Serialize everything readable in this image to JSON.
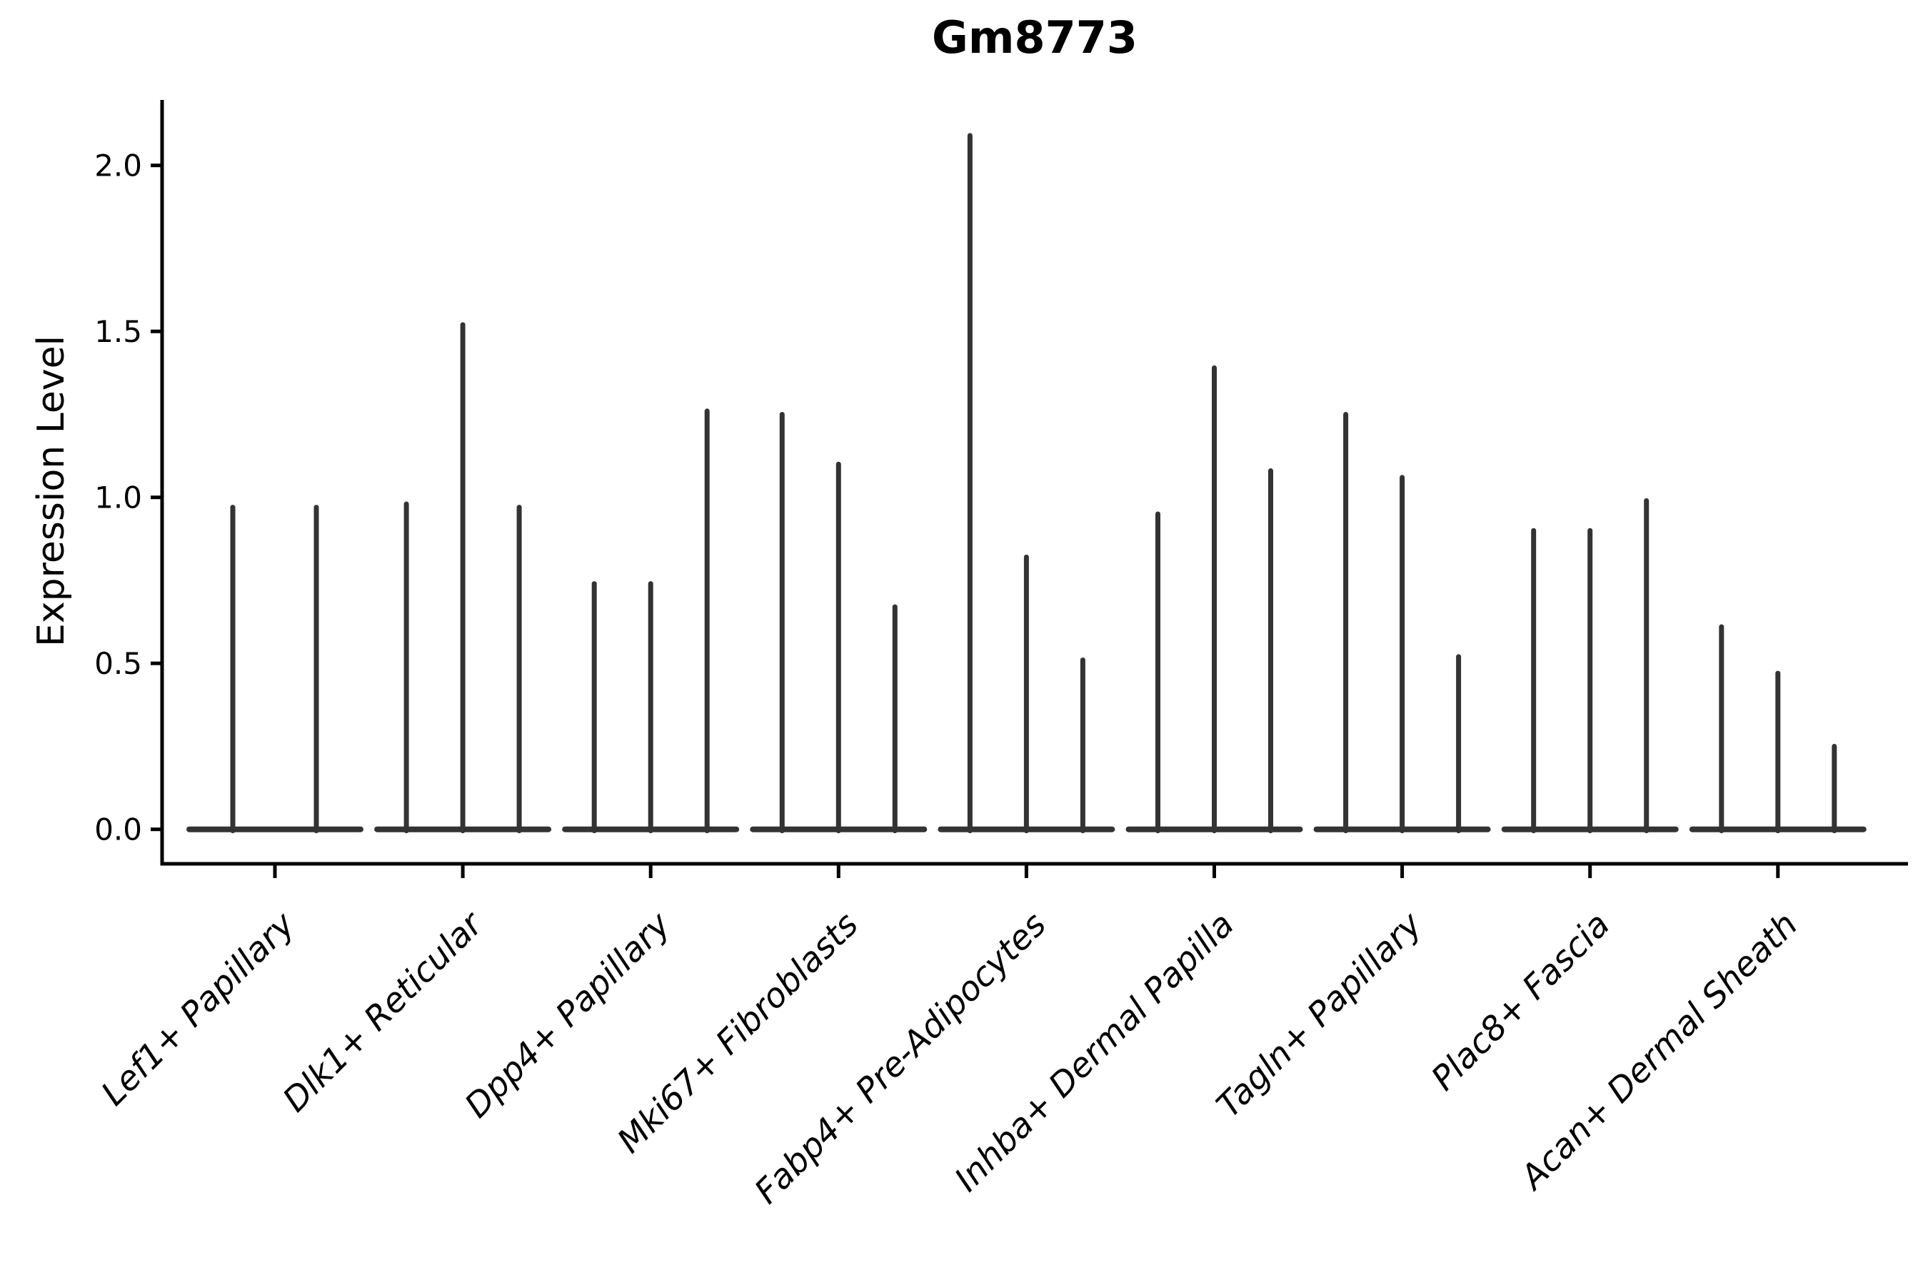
{
  "figure": {
    "title": "Gm8773",
    "ylabel": "Expression Level"
  },
  "chart_data": {
    "type": "violin",
    "title": "Gm8773",
    "xlabel": "",
    "ylabel": "Expression Level",
    "categories": [
      "Lef1+ Papillary",
      "Dlk1+ Reticular",
      "Dpp4+ Papillary",
      "Mki67+ Fibroblasts",
      "Fabp4+ Pre-Adipocytes",
      "Inhba+ Dermal Papilla",
      "Tagln+ Papillary",
      "Plac8+ Fascia",
      "Acan+ Dermal Sheath"
    ],
    "spike_values": [
      [
        0.97,
        0.97
      ],
      [
        0.98,
        1.52,
        0.97
      ],
      [
        0.74,
        0.74,
        1.26
      ],
      [
        1.25,
        1.1,
        0.67
      ],
      [
        2.09,
        0.82,
        0.51
      ],
      [
        0.95,
        1.39,
        1.08
      ],
      [
        1.25,
        1.06,
        0.52
      ],
      [
        0.9,
        0.9,
        0.99
      ],
      [
        0.61,
        0.47,
        0.25
      ]
    ],
    "yticks": [
      "0.0",
      "0.5",
      "1.0",
      "1.5",
      "2.0"
    ],
    "ylim": [
      -0.1,
      2.2
    ],
    "grid": false,
    "legend": null,
    "style": {
      "violin_color": "#333333",
      "axis_color": "#000000",
      "background": "#ffffff"
    }
  }
}
